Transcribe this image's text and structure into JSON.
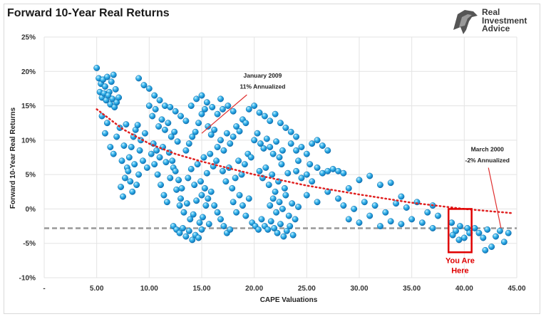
{
  "chart_data": {
    "type": "scatter",
    "title": "Forward 10-Year Real Returns",
    "xlabel": "CAPE Valuations",
    "ylabel": "Forward 10-Year Real Returns",
    "xlim": [
      0,
      45
    ],
    "ylim": [
      -10,
      25
    ],
    "x_ticks": [
      "-",
      "5.00",
      "10.00",
      "15.00",
      "20.00",
      "25.00",
      "30.00",
      "35.00",
      "40.00",
      "45.00"
    ],
    "y_ticks": [
      "-10%",
      "-5%",
      "0%",
      "5%",
      "10%",
      "15%",
      "20%",
      "25%"
    ],
    "grid": true,
    "reference_line": {
      "y": -2.8,
      "style": "dashed",
      "color": "#999999"
    },
    "trendline": {
      "style": "dotted",
      "color": "#e02020",
      "points": [
        [
          5.0,
          14.5
        ],
        [
          7.5,
          11.6
        ],
        [
          10,
          9.5
        ],
        [
          12.5,
          8.0
        ],
        [
          15,
          6.9
        ],
        [
          20,
          5.0
        ],
        [
          25,
          3.4
        ],
        [
          30,
          2.1
        ],
        [
          35,
          0.9
        ],
        [
          40,
          0.0
        ],
        [
          44.5,
          -0.6
        ]
      ]
    },
    "annotations": [
      {
        "text": "January 2009",
        "x": 15.0,
        "y": 11.0
      },
      {
        "text": "11% Annualized",
        "x": 15.0,
        "y": 11.0
      },
      {
        "text": "March 2000",
        "x": 43.5,
        "y": -2.8
      },
      {
        "text": "-2% Annualized",
        "x": 43.5,
        "y": -2.8
      }
    ],
    "highlight": {
      "label_line1": "You Are",
      "label_line2": "Here",
      "x_range": [
        38.5,
        40.7
      ],
      "y_range": [
        -6.3,
        0
      ],
      "color": "#e00000"
    },
    "series": [
      {
        "points": [
          [
            5.0,
            20.5
          ],
          [
            5.2,
            19.0
          ],
          [
            5.4,
            18.2
          ],
          [
            5.6,
            18.8
          ],
          [
            5.8,
            17.8
          ],
          [
            6.0,
            19.2
          ],
          [
            6.2,
            17.0
          ],
          [
            6.4,
            18.5
          ],
          [
            6.6,
            19.5
          ],
          [
            6.8,
            17.4
          ],
          [
            5.3,
            17.0
          ],
          [
            5.5,
            16.2
          ],
          [
            5.7,
            16.8
          ],
          [
            5.9,
            15.8
          ],
          [
            6.1,
            16.5
          ],
          [
            6.3,
            15.2
          ],
          [
            6.5,
            16.0
          ],
          [
            6.7,
            14.8
          ],
          [
            6.9,
            15.5
          ],
          [
            7.1,
            16.2
          ],
          [
            5.5,
            13.5
          ],
          [
            5.8,
            11.0
          ],
          [
            6.0,
            12.5
          ],
          [
            6.3,
            9.0
          ],
          [
            6.6,
            8.0
          ],
          [
            6.9,
            10.5
          ],
          [
            7.2,
            11.8
          ],
          [
            7.4,
            7.0
          ],
          [
            7.6,
            9.2
          ],
          [
            7.8,
            12.3
          ],
          [
            7.3,
            3.2
          ],
          [
            7.5,
            1.8
          ],
          [
            7.7,
            4.5
          ],
          [
            7.9,
            6.0
          ],
          [
            8.1,
            7.5
          ],
          [
            8.3,
            9.0
          ],
          [
            8.5,
            10.5
          ],
          [
            8.7,
            11.5
          ],
          [
            8.9,
            12.2
          ],
          [
            9.1,
            8.5
          ],
          [
            8.0,
            5.5
          ],
          [
            8.2,
            4.0
          ],
          [
            8.4,
            2.5
          ],
          [
            8.6,
            6.5
          ],
          [
            8.8,
            3.5
          ],
          [
            9.0,
            5.0
          ],
          [
            9.2,
            10.0
          ],
          [
            9.4,
            7.0
          ],
          [
            9.6,
            11.0
          ],
          [
            9.8,
            6.0
          ],
          [
            9.0,
            19.0
          ],
          [
            9.5,
            18.0
          ],
          [
            10.0,
            17.5
          ],
          [
            10.5,
            16.5
          ],
          [
            11.0,
            15.8
          ],
          [
            11.5,
            15.0
          ],
          [
            12.0,
            14.8
          ],
          [
            12.5,
            14.2
          ],
          [
            13.0,
            13.5
          ],
          [
            13.5,
            12.8
          ],
          [
            10.0,
            15.0
          ],
          [
            10.3,
            13.5
          ],
          [
            10.6,
            14.5
          ],
          [
            10.9,
            12.0
          ],
          [
            11.2,
            13.0
          ],
          [
            11.5,
            11.5
          ],
          [
            11.8,
            12.5
          ],
          [
            12.1,
            10.5
          ],
          [
            12.4,
            11.2
          ],
          [
            12.7,
            9.8
          ],
          [
            10.2,
            8.0
          ],
          [
            10.5,
            6.5
          ],
          [
            10.8,
            5.0
          ],
          [
            11.1,
            3.5
          ],
          [
            11.4,
            2.0
          ],
          [
            11.7,
            1.0
          ],
          [
            12.0,
            4.5
          ],
          [
            12.3,
            6.0
          ],
          [
            12.6,
            2.8
          ],
          [
            12.9,
            0.5
          ],
          [
            10.4,
            9.5
          ],
          [
            10.7,
            8.5
          ],
          [
            11.0,
            7.5
          ],
          [
            11.3,
            9.0
          ],
          [
            11.6,
            6.8
          ],
          [
            11.9,
            8.2
          ],
          [
            12.2,
            7.0
          ],
          [
            12.5,
            5.5
          ],
          [
            12.8,
            4.2
          ],
          [
            13.1,
            3.0
          ],
          [
            12.3,
            -2.5
          ],
          [
            12.6,
            -3.0
          ],
          [
            12.9,
            -3.5
          ],
          [
            13.2,
            -2.8
          ],
          [
            13.5,
            -4.0
          ],
          [
            13.8,
            -3.2
          ],
          [
            14.1,
            -4.5
          ],
          [
            14.4,
            -3.8
          ],
          [
            14.7,
            -4.2
          ],
          [
            15.0,
            -3.0
          ],
          [
            13.0,
            1.5
          ],
          [
            13.3,
            -0.5
          ],
          [
            13.6,
            0.8
          ],
          [
            13.9,
            -1.5
          ],
          [
            14.2,
            -0.8
          ],
          [
            14.5,
            1.2
          ],
          [
            14.8,
            -2.0
          ],
          [
            15.1,
            -1.2
          ],
          [
            15.4,
            0.5
          ],
          [
            15.7,
            -2.2
          ],
          [
            13.5,
            8.5
          ],
          [
            13.8,
            9.5
          ],
          [
            14.1,
            10.5
          ],
          [
            14.4,
            11.2
          ],
          [
            14.7,
            12.5
          ],
          [
            15.0,
            13.8
          ],
          [
            15.3,
            14.5
          ],
          [
            15.6,
            12.0
          ],
          [
            15.9,
            10.8
          ],
          [
            16.2,
            11.5
          ],
          [
            14.0,
            15.0
          ],
          [
            14.5,
            16.0
          ],
          [
            15.0,
            16.5
          ],
          [
            15.5,
            15.5
          ],
          [
            16.0,
            14.8
          ],
          [
            16.5,
            13.8
          ],
          [
            17.0,
            14.5
          ],
          [
            17.5,
            15.0
          ],
          [
            18.0,
            14.2
          ],
          [
            16.8,
            16.0
          ],
          [
            13.7,
            4.5
          ],
          [
            14.0,
            5.8
          ],
          [
            14.3,
            3.5
          ],
          [
            14.6,
            6.5
          ],
          [
            14.9,
            4.0
          ],
          [
            15.2,
            7.5
          ],
          [
            15.5,
            5.2
          ],
          [
            15.8,
            8.0
          ],
          [
            16.1,
            6.2
          ],
          [
            16.4,
            7.0
          ],
          [
            15.0,
            2.0
          ],
          [
            15.3,
            3.0
          ],
          [
            15.6,
            1.5
          ],
          [
            15.9,
            2.5
          ],
          [
            16.2,
            0.5
          ],
          [
            16.5,
            -0.5
          ],
          [
            16.8,
            -1.5
          ],
          [
            17.1,
            -2.5
          ],
          [
            17.4,
            -3.5
          ],
          [
            17.7,
            -3.0
          ],
          [
            16.5,
            9.0
          ],
          [
            16.8,
            10.0
          ],
          [
            17.1,
            8.5
          ],
          [
            17.4,
            11.0
          ],
          [
            17.7,
            9.5
          ],
          [
            18.0,
            10.5
          ],
          [
            18.3,
            12.0
          ],
          [
            18.6,
            11.3
          ],
          [
            18.9,
            13.0
          ],
          [
            19.2,
            12.5
          ],
          [
            17.0,
            5.5
          ],
          [
            17.3,
            4.0
          ],
          [
            17.6,
            6.0
          ],
          [
            17.9,
            3.0
          ],
          [
            18.2,
            4.5
          ],
          [
            18.5,
            7.0
          ],
          [
            18.8,
            5.0
          ],
          [
            19.1,
            6.5
          ],
          [
            19.4,
            8.0
          ],
          [
            19.7,
            7.5
          ],
          [
            18.0,
            1.0
          ],
          [
            18.3,
            -0.5
          ],
          [
            18.6,
            2.0
          ],
          [
            18.9,
            0.5
          ],
          [
            19.2,
            -1.0
          ],
          [
            19.5,
            1.5
          ],
          [
            19.8,
            -2.0
          ],
          [
            20.1,
            -2.5
          ],
          [
            20.4,
            -3.0
          ],
          [
            20.7,
            -1.5
          ],
          [
            19.5,
            14.5
          ],
          [
            20.0,
            15.0
          ],
          [
            20.5,
            14.0
          ],
          [
            21.0,
            13.5
          ],
          [
            21.5,
            12.8
          ],
          [
            22.0,
            13.8
          ],
          [
            22.5,
            12.5
          ],
          [
            23.0,
            11.8
          ],
          [
            23.5,
            11.2
          ],
          [
            24.0,
            10.5
          ],
          [
            20.0,
            10.0
          ],
          [
            20.3,
            11.0
          ],
          [
            20.6,
            9.5
          ],
          [
            20.9,
            8.8
          ],
          [
            21.2,
            10.2
          ],
          [
            21.5,
            9.0
          ],
          [
            21.8,
            8.0
          ],
          [
            22.1,
            9.8
          ],
          [
            22.4,
            7.5
          ],
          [
            22.7,
            8.5
          ],
          [
            20.5,
            5.5
          ],
          [
            20.8,
            4.5
          ],
          [
            21.1,
            6.0
          ],
          [
            21.4,
            3.5
          ],
          [
            21.7,
            5.0
          ],
          [
            22.0,
            2.5
          ],
          [
            22.3,
            4.0
          ],
          [
            22.6,
            6.5
          ],
          [
            22.9,
            3.0
          ],
          [
            23.2,
            5.2
          ],
          [
            21.0,
            -2.5
          ],
          [
            21.3,
            -3.0
          ],
          [
            21.6,
            -1.8
          ],
          [
            21.9,
            -2.8
          ],
          [
            22.2,
            -3.5
          ],
          [
            22.5,
            -2.2
          ],
          [
            22.8,
            -4.0
          ],
          [
            23.1,
            -3.2
          ],
          [
            23.4,
            -2.5
          ],
          [
            23.7,
            -3.8
          ],
          [
            21.5,
            0.5
          ],
          [
            21.8,
            1.5
          ],
          [
            22.1,
            -0.5
          ],
          [
            22.4,
            1.0
          ],
          [
            22.7,
            0.0
          ],
          [
            23.0,
            2.0
          ],
          [
            23.3,
            -1.0
          ],
          [
            23.6,
            0.8
          ],
          [
            23.9,
            -1.5
          ],
          [
            24.2,
            0.3
          ],
          [
            23.5,
            9.5
          ],
          [
            24.0,
            8.5
          ],
          [
            24.5,
            9.0
          ],
          [
            25.0,
            8.0
          ],
          [
            25.5,
            9.5
          ],
          [
            26.0,
            10.0
          ],
          [
            26.5,
            9.2
          ],
          [
            27.0,
            8.5
          ],
          [
            24.2,
            7.0
          ],
          [
            25.3,
            6.5
          ],
          [
            24.0,
            5.5
          ],
          [
            24.5,
            4.5
          ],
          [
            25.0,
            5.0
          ],
          [
            25.5,
            4.0
          ],
          [
            26.0,
            6.0
          ],
          [
            26.5,
            5.2
          ],
          [
            27.0,
            5.5
          ],
          [
            27.5,
            5.8
          ],
          [
            28.0,
            5.5
          ],
          [
            28.5,
            5.2
          ],
          [
            25.0,
            2.0
          ],
          [
            26.0,
            1.0
          ],
          [
            27.0,
            2.5
          ],
          [
            28.0,
            1.5
          ],
          [
            29.0,
            3.0
          ],
          [
            30.0,
            4.2
          ],
          [
            31.0,
            4.8
          ],
          [
            32.0,
            3.5
          ],
          [
            33.0,
            3.8
          ],
          [
            34.0,
            1.8
          ],
          [
            28.5,
            0.5
          ],
          [
            29.5,
            0.0
          ],
          [
            30.5,
            1.0
          ],
          [
            31.5,
            0.5
          ],
          [
            32.5,
            -0.5
          ],
          [
            33.5,
            0.8
          ],
          [
            34.5,
            0.2
          ],
          [
            35.5,
            1.0
          ],
          [
            36.5,
            -0.5
          ],
          [
            37.0,
            0.5
          ],
          [
            29.0,
            -1.5
          ],
          [
            30.0,
            -2.0
          ],
          [
            31.0,
            -1.0
          ],
          [
            32.0,
            -2.5
          ],
          [
            33.0,
            -1.8
          ],
          [
            34.0,
            -2.2
          ],
          [
            35.0,
            -1.5
          ],
          [
            36.0,
            -2.0
          ],
          [
            37.0,
            -2.8
          ],
          [
            37.5,
            -1.0
          ],
          [
            38.8,
            -2.0
          ],
          [
            39.2,
            -3.2
          ],
          [
            39.6,
            -2.5
          ],
          [
            40.0,
            -4.2
          ],
          [
            40.3,
            -2.8
          ],
          [
            38.9,
            -3.8
          ],
          [
            39.5,
            -4.5
          ],
          [
            40.5,
            -3.5
          ],
          [
            41.0,
            -2.8
          ],
          [
            41.4,
            -3.5
          ],
          [
            41.8,
            -4.2
          ],
          [
            42.2,
            -3.0
          ],
          [
            42.6,
            -5.5
          ],
          [
            43.0,
            -4.0
          ],
          [
            43.4,
            -3.2
          ],
          [
            43.8,
            -4.8
          ],
          [
            44.2,
            -3.5
          ],
          [
            42.0,
            -6.0
          ]
        ]
      }
    ]
  }
}
